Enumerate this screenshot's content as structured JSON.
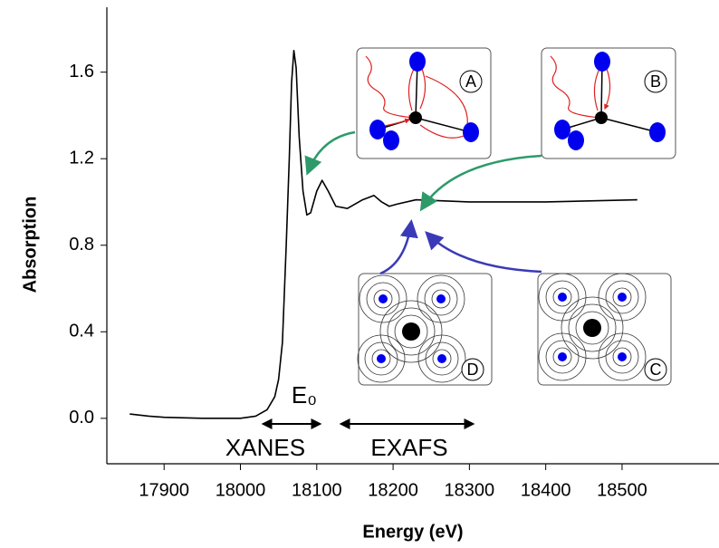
{
  "chart_data": {
    "type": "line",
    "x_label": "Energy (eV)",
    "y_label": "Absorption",
    "x": [
      17855,
      17880,
      17900,
      17950,
      18000,
      18020,
      18035,
      18045,
      18050,
      18055,
      18060,
      18064,
      18067,
      18070,
      18073,
      18077,
      18082,
      18087,
      18092,
      18100,
      18107,
      18115,
      18125,
      18140,
      18160,
      18175,
      18185,
      18195,
      18205,
      18230,
      18300,
      18400,
      18520
    ],
    "series": [
      {
        "color": "#000000",
        "values": [
          0.02,
          0.01,
          0.005,
          0.0,
          0.0,
          0.01,
          0.04,
          0.1,
          0.18,
          0.35,
          0.8,
          1.2,
          1.55,
          1.7,
          1.62,
          1.3,
          1.05,
          0.94,
          0.95,
          1.05,
          1.1,
          1.05,
          0.98,
          0.97,
          1.01,
          1.03,
          1.0,
          0.98,
          0.99,
          1.01,
          1.0,
          1.0,
          1.01
        ]
      }
    ],
    "xlim": [
      17825,
      18627
    ],
    "ylim": [
      -0.21,
      1.9
    ],
    "xticks": [
      17900,
      18000,
      18100,
      18200,
      18300,
      18400,
      18500
    ],
    "yticks": [
      {
        "value": 0,
        "label": "0.0"
      },
      0.4,
      0.8,
      1.2,
      1.6
    ],
    "annotations": {
      "e0": "E₀",
      "xanes": "XANES",
      "exafs": "EXAFS",
      "insets": [
        "A",
        "B",
        "C",
        "D"
      ]
    }
  }
}
